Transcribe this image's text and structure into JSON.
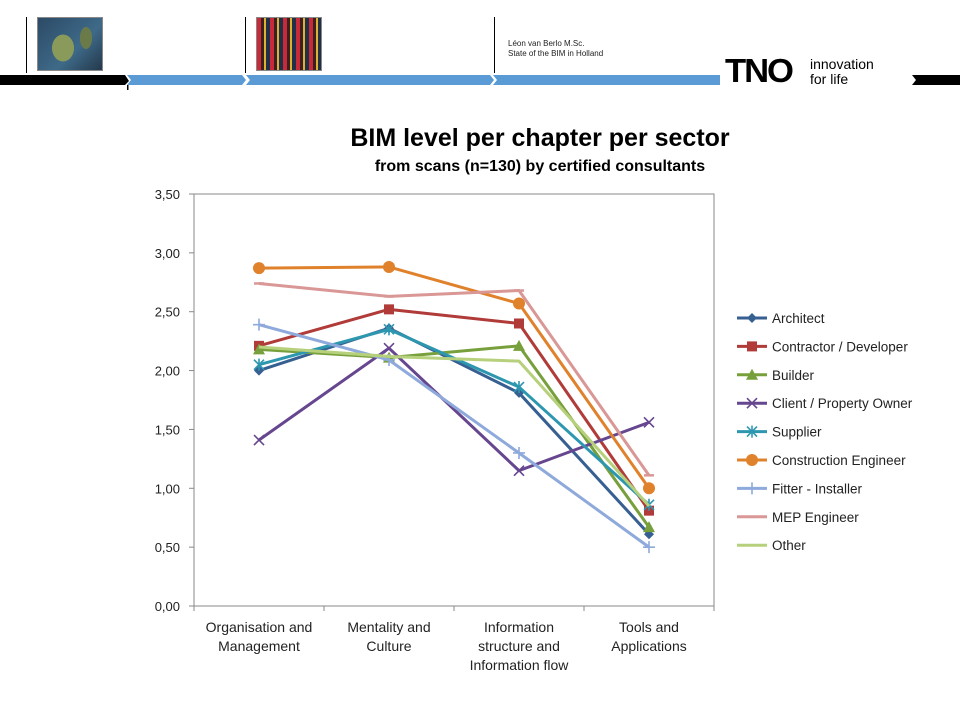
{
  "header": {
    "author": "Léon van Berlo M.Sc.",
    "subject": "State of the BIM in Holland",
    "logo_text": "TNO",
    "tagline_1": "innovation",
    "tagline_2": "for life"
  },
  "colors": {
    "bar_blue": "#5b9bd5",
    "bar_black": "#000000"
  },
  "chart_data": {
    "type": "line",
    "title": "BIM level per chapter per sector",
    "subtitle": "from scans (n=130) by certified consultants",
    "categories": [
      "Organisation and Management",
      "Mentality and Culture",
      "Information structure and Information flow",
      "Tools and Applications"
    ],
    "category_lines": [
      [
        "Organisation and",
        "Management"
      ],
      [
        "Mentality and",
        "Culture"
      ],
      [
        "Information",
        "structure and",
        "Information flow"
      ],
      [
        "Tools and",
        "Applications"
      ]
    ],
    "ylim": [
      0,
      3.5
    ],
    "yticks": [
      "0,00",
      "0,50",
      "1,00",
      "1,50",
      "2,00",
      "2,50",
      "3,00",
      "3,50"
    ],
    "legend_position": "right",
    "grid": false,
    "series": [
      {
        "name": "Architect",
        "values": [
          2.0,
          2.36,
          1.81,
          0.61
        ],
        "color": "#376092",
        "marker": "diamond"
      },
      {
        "name": "Contractor / Developer",
        "values": [
          2.21,
          2.52,
          2.4,
          0.81
        ],
        "color": "#b03b38",
        "marker": "square"
      },
      {
        "name": "Builder",
        "values": [
          2.18,
          2.11,
          2.21,
          0.67
        ],
        "color": "#77a03c",
        "marker": "triangle"
      },
      {
        "name": "Client / Property Owner",
        "values": [
          1.41,
          2.19,
          1.15,
          1.56
        ],
        "color": "#66468f",
        "marker": "x"
      },
      {
        "name": "Supplier",
        "values": [
          2.05,
          2.35,
          1.86,
          0.86
        ],
        "color": "#2e97b0",
        "marker": "star"
      },
      {
        "name": "Construction Engineer",
        "values": [
          2.87,
          2.88,
          2.57,
          1.0
        ],
        "color": "#e0812c",
        "marker": "circle"
      },
      {
        "name": "Fitter - Installer",
        "values": [
          2.39,
          2.09,
          1.3,
          0.5
        ],
        "color": "#8ea9db",
        "marker": "plus"
      },
      {
        "name": "MEP Engineer",
        "values": [
          2.74,
          2.63,
          2.68,
          1.11
        ],
        "color": "#d99795",
        "marker": "dash"
      },
      {
        "name": "Other",
        "values": [
          2.2,
          2.12,
          2.08,
          0.85
        ],
        "color": "#b6d07c",
        "marker": "none"
      }
    ]
  }
}
